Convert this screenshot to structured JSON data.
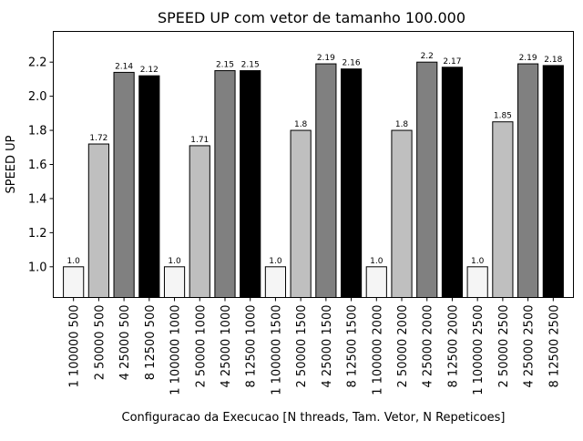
{
  "chart_data": {
    "type": "bar",
    "title": "SPEED UP com vetor de tamanho 100.000",
    "xlabel": "Configuracao da Execucao [N threads, Tam. Vetor, N Repeticoes]",
    "ylabel": "SPEED UP",
    "ylim": [
      0.82,
      2.38
    ],
    "yticks": [
      1.0,
      1.2,
      1.4,
      1.6,
      1.8,
      2.0,
      2.2
    ],
    "ytick_labels": [
      "1.0",
      "1.2",
      "1.4",
      "1.6",
      "1.8",
      "2.0",
      "2.2"
    ],
    "grid": false,
    "categories": [
      "1 100000 500",
      "2 50000 500",
      "4 25000 500",
      "8 12500 500",
      "1 100000 1000",
      "2 50000 1000",
      "4 25000 1000",
      "8 12500 1000",
      "1 100000 1500",
      "2 50000 1500",
      "4 25000 1500",
      "8 12500 1500",
      "1 100000 2000",
      "2 50000 2000",
      "4 25000 2000",
      "8 12500 2000",
      "1 100000 2500",
      "2 50000 2500",
      "4 25000 2500",
      "8 12500 2500"
    ],
    "values": [
      1.0,
      1.72,
      2.14,
      2.12,
      1.0,
      1.71,
      2.15,
      2.15,
      1.0,
      1.8,
      2.19,
      2.16,
      1.0,
      1.8,
      2.2,
      2.17,
      1.0,
      1.85,
      2.19,
      2.18
    ],
    "value_labels": [
      "1.0",
      "1.72",
      "2.14",
      "2.12",
      "1.0",
      "1.71",
      "2.15",
      "2.15",
      "1.0",
      "1.8",
      "2.19",
      "2.16",
      "1.0",
      "1.8",
      "2.2",
      "2.17",
      "1.0",
      "1.85",
      "2.19",
      "2.18"
    ],
    "bar_colors": [
      "#f5f5f5",
      "#bfbfbf",
      "#808080",
      "#000000",
      "#f5f5f5",
      "#bfbfbf",
      "#808080",
      "#000000",
      "#f5f5f5",
      "#bfbfbf",
      "#808080",
      "#000000",
      "#f5f5f5",
      "#bfbfbf",
      "#808080",
      "#000000",
      "#f5f5f5",
      "#bfbfbf",
      "#808080",
      "#000000"
    ],
    "edge_color": "#000000"
  }
}
